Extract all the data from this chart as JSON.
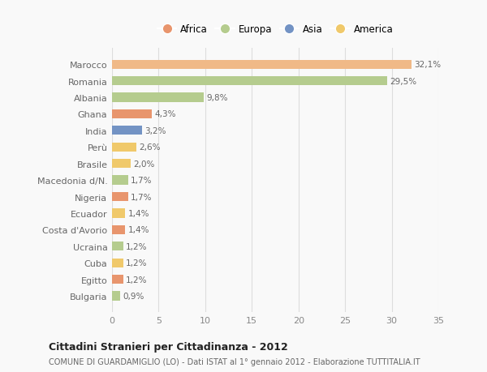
{
  "countries": [
    "Bulgaria",
    "Egitto",
    "Cuba",
    "Ucraina",
    "Costa d'Avorio",
    "Ecuador",
    "Nigeria",
    "Macedonia d/N.",
    "Brasile",
    "Perù",
    "India",
    "Ghana",
    "Albania",
    "Romania",
    "Marocco"
  ],
  "values": [
    0.9,
    1.2,
    1.2,
    1.2,
    1.4,
    1.4,
    1.7,
    1.7,
    2.0,
    2.6,
    3.2,
    4.3,
    9.8,
    29.5,
    32.1
  ],
  "labels": [
    "0,9%",
    "1,2%",
    "1,2%",
    "1,2%",
    "1,4%",
    "1,4%",
    "1,7%",
    "1,7%",
    "2,0%",
    "2,6%",
    "3,2%",
    "4,3%",
    "9,8%",
    "29,5%",
    "32,1%"
  ],
  "colors": [
    "#b5cc8e",
    "#e8956d",
    "#f0c96b",
    "#b5cc8e",
    "#e8956d",
    "#f0c96b",
    "#e8956d",
    "#b5cc8e",
    "#f0c96b",
    "#f0c96b",
    "#7393c4",
    "#e8956d",
    "#b5cc8e",
    "#b5cc8e",
    "#f0b987"
  ],
  "legend_labels": [
    "Africa",
    "Europa",
    "Asia",
    "America"
  ],
  "legend_colors": [
    "#e8956d",
    "#b5cc8e",
    "#7393c4",
    "#f0c96b"
  ],
  "title": "Cittadini Stranieri per Cittadinanza - 2012",
  "subtitle": "COMUNE DI GUARDAMIGLIO (LO) - Dati ISTAT al 1° gennaio 2012 - Elaborazione TUTTITALIA.IT",
  "xlim": [
    0,
    35
  ],
  "xticks": [
    0,
    5,
    10,
    15,
    20,
    25,
    30,
    35
  ],
  "background_color": "#f9f9f9",
  "grid_color": "#dddddd",
  "bar_height": 0.55
}
